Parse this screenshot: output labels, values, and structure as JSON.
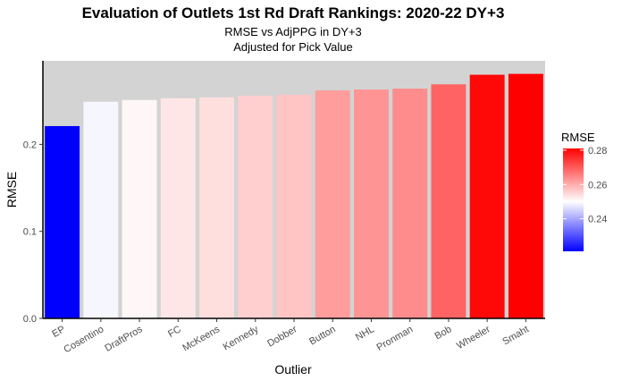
{
  "chart_data": {
    "type": "bar",
    "title": "Evaluation of Outlets 1st Rd Draft Rankings: 2020-22 DY+3",
    "subtitle_lines": [
      "RMSE vs AdjPPG in DY+3",
      "Adjusted for Pick Value"
    ],
    "xlabel": "Outlier",
    "ylabel": "RMSE",
    "categories": [
      "EP",
      "Cosentino",
      "DraftPros",
      "FC",
      "McKeens",
      "Kennedy",
      "Dobber",
      "Button",
      "NHL",
      "Pronman",
      "Bob",
      "Wheeler",
      "Smaht"
    ],
    "values": [
      0.221,
      0.249,
      0.251,
      0.253,
      0.254,
      0.256,
      0.257,
      0.262,
      0.263,
      0.264,
      0.269,
      0.28,
      0.281
    ],
    "ylim": [
      0,
      0.296
    ],
    "yticks": [
      0.0,
      0.1,
      0.2
    ],
    "ytick_labels": [
      "0.0",
      "0.1",
      "0.2"
    ],
    "grid": false,
    "panel_background": "#d3d3d3",
    "legend": {
      "title": "RMSE",
      "placement": "right",
      "min": 0.221,
      "max": 0.281,
      "midpoint": 0.25,
      "ticks": [
        0.24,
        0.26,
        0.28
      ],
      "tick_labels": [
        "0.24",
        "0.26",
        "0.28"
      ],
      "colors": {
        "low": "#0000ff",
        "mid": "#ffffff",
        "high": "#ff0000"
      }
    }
  }
}
